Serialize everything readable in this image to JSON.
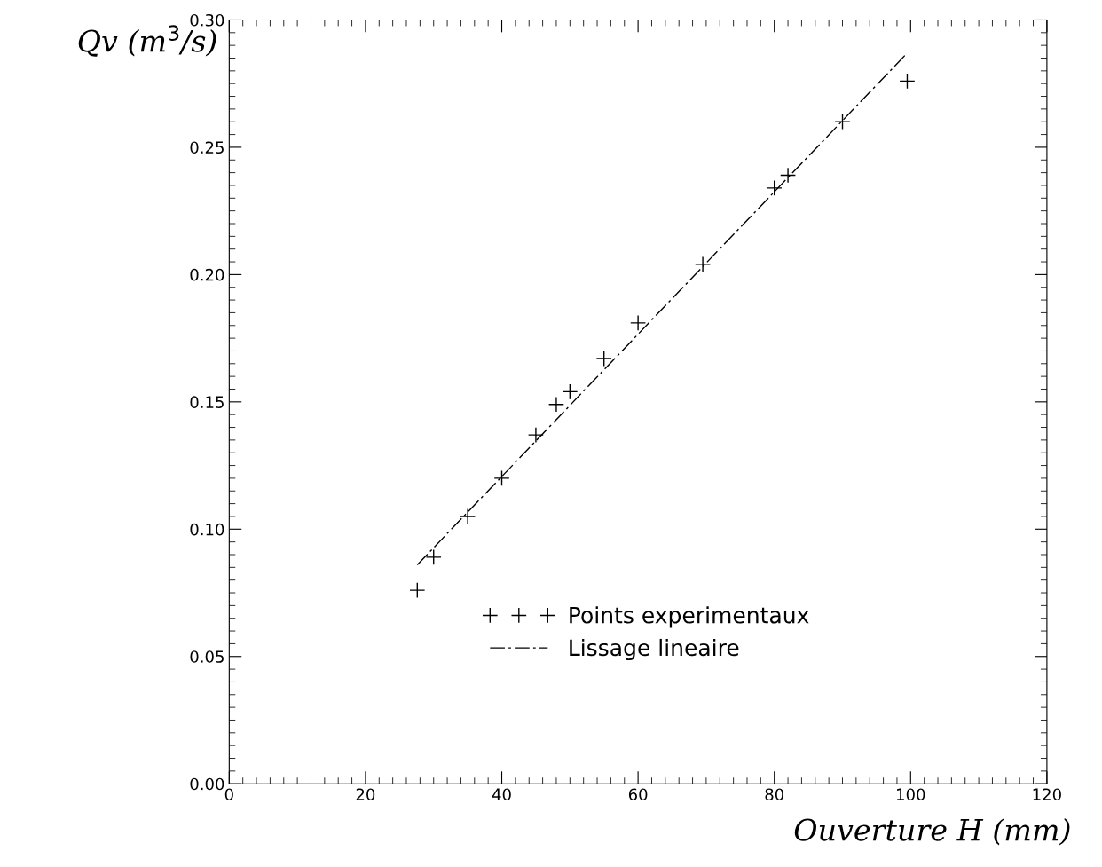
{
  "chart_data": {
    "type": "scatter",
    "xlabel": "Ouverture H (mm)",
    "ylabel": "Qv (m$^{3}$/s)",
    "xlim": [
      0,
      120
    ],
    "ylim": [
      0,
      0.3
    ],
    "xticks": [
      0,
      20,
      40,
      60,
      80,
      100,
      120
    ],
    "yticks": [
      {
        "value": 0,
        "label": "0.00"
      },
      {
        "value": 0.05,
        "label": "0.05"
      },
      {
        "value": 0.1,
        "label": "0.10"
      },
      {
        "value": 0.15,
        "label": "0.15"
      },
      {
        "value": 0.2,
        "label": "0.20"
      },
      {
        "value": 0.25,
        "label": "0.25"
      },
      {
        "value": 0.3,
        "label": "0.30"
      }
    ],
    "legend": "bottom right",
    "grid": false,
    "series": [
      {
        "name": "Points experimentaux",
        "type": "scatter",
        "marker": "cross",
        "color": "#000000",
        "x": [
          27.6,
          30,
          35,
          40,
          45,
          48,
          50,
          55,
          60,
          69.5,
          80,
          82,
          90,
          99.5
        ],
        "values": [
          0.076,
          0.089,
          0.105,
          0.12,
          0.137,
          0.149,
          0.154,
          0.167,
          0.181,
          0.204,
          0.234,
          0.239,
          0.26,
          0.276
        ]
      },
      {
        "name": "Lissage lineaire",
        "type": "line",
        "line_style": "dashed",
        "color": "#000000",
        "x": [
          27.6,
          99.5
        ],
        "values": [
          0.086,
          0.287
        ]
      }
    ]
  }
}
